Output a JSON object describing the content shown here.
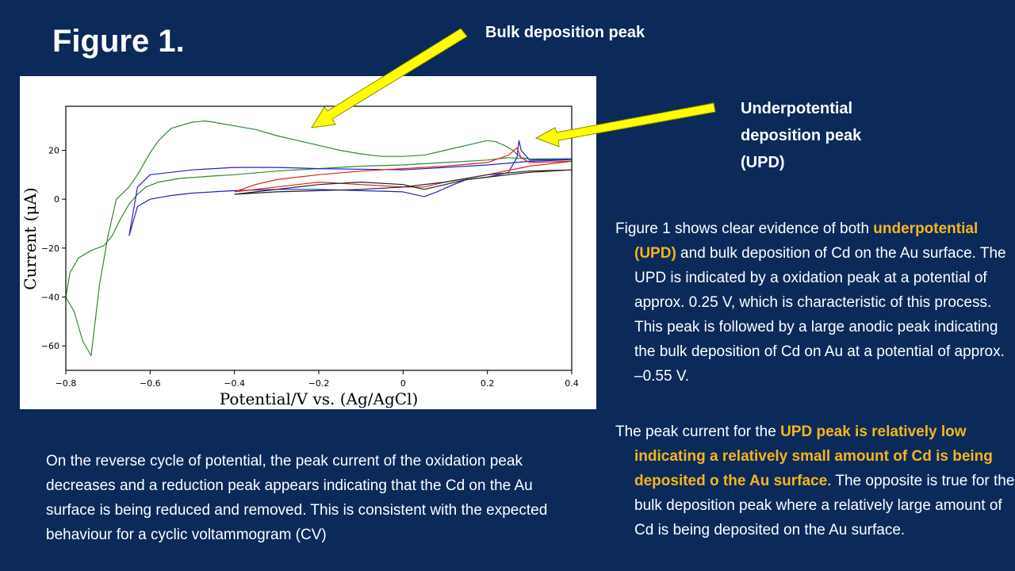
{
  "slide": {
    "title": "Figure 1.",
    "callout_bulk": "Bulk deposition peak",
    "callout_upd": "Underpotential deposition peak (UPD)",
    "para_fig": {
      "t1": "Figure 1 shows clear evidence of both ",
      "h1": "underpotential (UPD)",
      "t2": " and bulk deposition of Cd on the Au surface. The UPD is indicated by a oxidation peak at a potential of approx. 0.25 V, which is characteristic of this process. This peak is followed by a large anodic peak indicating the bulk deposition of Cd on Au at a potential of approx. –0.55 V."
    },
    "para_upd": {
      "t1": "The peak current for the ",
      "h1": "UPD peak is relatively low indicating a relatively small amount of Cd is being deposited o the Au surface",
      "t2": ". The opposite is true for the bulk deposition peak where a relatively large amount of Cd is being deposited on the Au surface."
    },
    "para_rev": "On the reverse cycle of potential, the peak current of the oxidation peak decreases and a reduction peak appears indicating that the Cd on the Au surface is being reduced and removed. This is consistent with the expected behaviour for a  cyclic voltammogram (CV)",
    "colors": {
      "background": "#0b2a5a",
      "highlight": "#f7b51c",
      "arrow": "#ffff00"
    }
  },
  "chart_data": {
    "type": "line",
    "title": "",
    "xlabel": "Potential/V vs. (Ag/AgCl)",
    "ylabel": "Current (μA)",
    "xlim": [
      -0.8,
      0.4
    ],
    "ylim": [
      -70,
      38
    ],
    "xticks": [
      -0.8,
      -0.6,
      -0.4,
      -0.2,
      0,
      0.2,
      0.4
    ],
    "xtick_labels": [
      "−0.8",
      "−0.6",
      "−0.4",
      "−0.2",
      "0",
      "0.2",
      "0.4"
    ],
    "yticks": [
      20,
      0,
      -20,
      -40,
      -60
    ],
    "ytick_labels": [
      "20",
      "0",
      "−20",
      "−40",
      "−60"
    ],
    "grid": false,
    "series": [
      {
        "color": "#2e8b2e",
        "points": [
          [
            0.4,
            16.5
          ],
          [
            0.35,
            16.5
          ],
          [
            0.3,
            16.5
          ],
          [
            0.28,
            17
          ],
          [
            0.26,
            20
          ],
          [
            0.24,
            22
          ],
          [
            0.22,
            23.5
          ],
          [
            0.2,
            24
          ],
          [
            0.15,
            22
          ],
          [
            0.1,
            20
          ],
          [
            0.05,
            18
          ],
          [
            0,
            17.5
          ],
          [
            -0.05,
            17.5
          ],
          [
            -0.1,
            18.5
          ],
          [
            -0.15,
            20
          ],
          [
            -0.2,
            22
          ],
          [
            -0.25,
            24
          ],
          [
            -0.3,
            26
          ],
          [
            -0.35,
            28.5
          ],
          [
            -0.4,
            30
          ],
          [
            -0.45,
            31.5
          ],
          [
            -0.47,
            32
          ],
          [
            -0.5,
            31.5
          ],
          [
            -0.55,
            29
          ],
          [
            -0.58,
            24
          ],
          [
            -0.6,
            19
          ],
          [
            -0.63,
            10
          ],
          [
            -0.65,
            5
          ],
          [
            -0.68,
            0
          ],
          [
            -0.7,
            -15
          ],
          [
            -0.72,
            -35
          ],
          [
            -0.74,
            -64
          ],
          [
            -0.76,
            -58
          ],
          [
            -0.78,
            -46
          ],
          [
            -0.8,
            -40
          ],
          [
            -0.79,
            -30
          ],
          [
            -0.77,
            -24
          ],
          [
            -0.74,
            -21
          ],
          [
            -0.71,
            -19
          ],
          [
            -0.69,
            -15
          ],
          [
            -0.67,
            -8
          ],
          [
            -0.65,
            -2
          ],
          [
            -0.63,
            2
          ],
          [
            -0.61,
            5
          ],
          [
            -0.58,
            7
          ],
          [
            -0.53,
            8.5
          ],
          [
            -0.45,
            9.5
          ],
          [
            -0.4,
            10
          ],
          [
            -0.3,
            11.5
          ],
          [
            -0.2,
            12.5
          ],
          [
            -0.1,
            13.5
          ],
          [
            0,
            14
          ],
          [
            0.1,
            15
          ],
          [
            0.2,
            16
          ],
          [
            0.25,
            17
          ],
          [
            0.3,
            16.5
          ],
          [
            0.35,
            16
          ],
          [
            0.4,
            16
          ]
        ]
      },
      {
        "color": "#2222cc",
        "points": [
          [
            -0.65,
            -15
          ],
          [
            -0.63,
            -3
          ],
          [
            -0.6,
            0
          ],
          [
            -0.55,
            1.5
          ],
          [
            -0.5,
            2.5
          ],
          [
            -0.45,
            3
          ],
          [
            -0.4,
            3.5
          ],
          [
            -0.3,
            4
          ],
          [
            -0.2,
            4
          ],
          [
            -0.1,
            3.5
          ],
          [
            0,
            3
          ],
          [
            0.05,
            1
          ],
          [
            0.08,
            3
          ],
          [
            0.12,
            6
          ],
          [
            0.15,
            8
          ],
          [
            0.2,
            9
          ],
          [
            0.25,
            11
          ],
          [
            0.27,
            17
          ],
          [
            0.275,
            24
          ],
          [
            0.28,
            20
          ],
          [
            0.3,
            16
          ],
          [
            0.4,
            16.5
          ],
          [
            0.38,
            16
          ],
          [
            0.3,
            15.5
          ],
          [
            0.2,
            14
          ],
          [
            0.1,
            13
          ],
          [
            0,
            12
          ],
          [
            -0.2,
            12.5
          ],
          [
            -0.3,
            13
          ],
          [
            -0.4,
            13
          ],
          [
            -0.5,
            12
          ],
          [
            -0.6,
            10
          ],
          [
            -0.63,
            5
          ],
          [
            -0.65,
            -15
          ]
        ]
      },
      {
        "color": "#dd2222",
        "points": [
          [
            -0.4,
            3
          ],
          [
            -0.35,
            6
          ],
          [
            -0.3,
            8
          ],
          [
            -0.2,
            10
          ],
          [
            -0.1,
            11.5
          ],
          [
            0,
            12.5
          ],
          [
            0.1,
            13.5
          ],
          [
            0.2,
            15
          ],
          [
            0.25,
            18
          ],
          [
            0.27,
            21
          ],
          [
            0.28,
            17
          ],
          [
            0.3,
            15
          ],
          [
            0.4,
            15.5
          ],
          [
            0.3,
            13.5
          ],
          [
            0.2,
            10
          ],
          [
            0.1,
            7
          ],
          [
            0.05,
            5
          ],
          [
            0,
            5
          ],
          [
            -0.1,
            6
          ],
          [
            -0.2,
            7
          ],
          [
            -0.3,
            5
          ],
          [
            -0.4,
            3
          ]
        ]
      },
      {
        "color": "#222222",
        "points": [
          [
            -0.4,
            2
          ],
          [
            -0.3,
            4
          ],
          [
            -0.2,
            6
          ],
          [
            -0.1,
            7
          ],
          [
            0,
            6
          ],
          [
            0.05,
            4
          ],
          [
            0.1,
            6
          ],
          [
            0.15,
            8
          ],
          [
            0.2,
            9
          ],
          [
            0.25,
            10
          ],
          [
            0.3,
            11
          ],
          [
            0.4,
            12
          ],
          [
            0.3,
            11.5
          ],
          [
            0.2,
            10
          ],
          [
            0.1,
            7
          ],
          [
            0,
            5
          ],
          [
            -0.1,
            4
          ],
          [
            -0.2,
            3.5
          ],
          [
            -0.3,
            3
          ],
          [
            -0.4,
            2
          ]
        ]
      }
    ]
  }
}
